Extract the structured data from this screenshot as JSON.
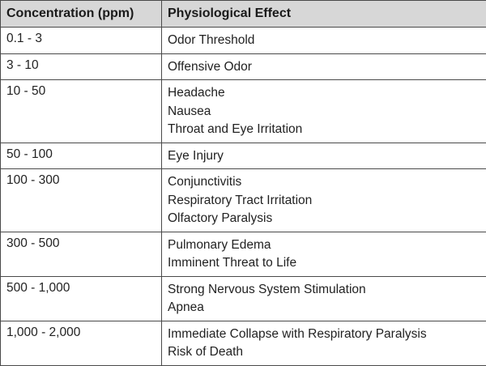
{
  "table": {
    "headers": [
      "Concentration (ppm)",
      "Physiological Effect"
    ],
    "rows": [
      {
        "concentration": "0.1 - 3",
        "effects": [
          "Odor Threshold"
        ]
      },
      {
        "concentration": "3 - 10",
        "effects": [
          "Offensive Odor"
        ]
      },
      {
        "concentration": "10 - 50",
        "effects": [
          "Headache",
          "Nausea",
          "Throat and Eye Irritation"
        ]
      },
      {
        "concentration": "50 - 100",
        "effects": [
          "Eye Injury"
        ]
      },
      {
        "concentration": "100 - 300",
        "effects": [
          "Conjunctivitis",
          "Respiratory Tract Irritation",
          "Olfactory Paralysis"
        ]
      },
      {
        "concentration": "300 - 500",
        "effects": [
          "Pulmonary Edema",
          "Imminent Threat to Life"
        ]
      },
      {
        "concentration": "500 - 1,000",
        "effects": [
          "Strong Nervous System Stimulation",
          "Apnea"
        ]
      },
      {
        "concentration": "1,000 - 2,000",
        "effects": [
          "Immediate Collapse with Respiratory Paralysis",
          "Risk of Death"
        ]
      }
    ]
  }
}
